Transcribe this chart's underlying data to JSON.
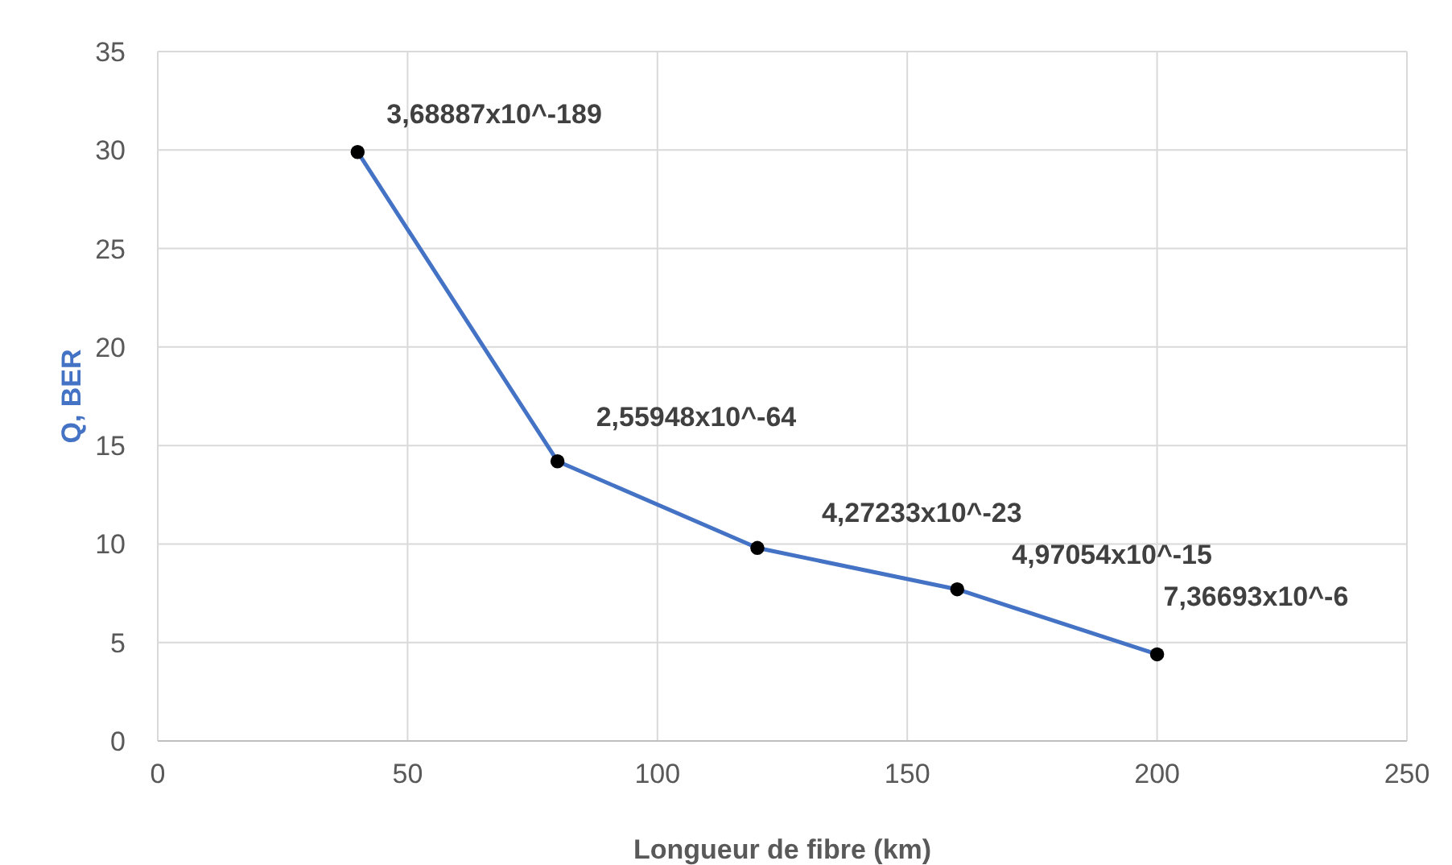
{
  "chart_data": {
    "type": "line",
    "xlabel": "Longueur de fibre (km)",
    "ylabel": "Q, BER",
    "series": [
      {
        "color": "#4472c4",
        "x": [
          40,
          80,
          120,
          160,
          200
        ],
        "values": [
          29.9,
          14.2,
          9.8,
          7.7,
          4.4
        ]
      }
    ],
    "xlim": [
      0,
      250
    ],
    "xticks": [
      0,
      50,
      100,
      150,
      200,
      250
    ],
    "ylim": [
      0,
      35
    ],
    "yticks": [
      0,
      5,
      10,
      15,
      20,
      25,
      30,
      35
    ],
    "grid": true,
    "marker": "circle",
    "line_style": "solid",
    "annotations": [
      {
        "text": "3,68887x10^-189",
        "x": 40,
        "y": 29.9
      },
      {
        "text": "2,55948x10^-64",
        "x": 80,
        "y": 14.2
      },
      {
        "text": "4,27233x10^-23",
        "x": 120,
        "y": 9.8
      },
      {
        "text": "4,97054x10^-15",
        "x": 160,
        "y": 7.7
      },
      {
        "text": "7,36693x10^-6",
        "x": 200,
        "y": 4.4
      }
    ]
  }
}
